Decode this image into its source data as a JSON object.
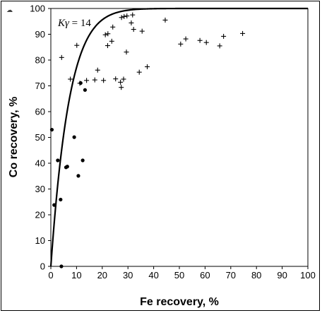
{
  "chart_data": {
    "type": "scatter",
    "xlabel": "Fe recovery, %",
    "ylabel": "Co recovery, %",
    "xlim": [
      0,
      100
    ],
    "ylim": [
      0,
      100
    ],
    "xticks": [
      0,
      10,
      20,
      30,
      40,
      50,
      60,
      70,
      80,
      90,
      100
    ],
    "yticks": [
      0,
      10,
      20,
      30,
      40,
      50,
      60,
      70,
      80,
      90,
      100
    ],
    "annotation": {
      "symbol": "Kγ",
      "equals": " = 14"
    },
    "corner_mark": "☁",
    "series": [
      {
        "marker": "plus",
        "points": [
          [
            4.2,
            81
          ],
          [
            7.6,
            72.6
          ],
          [
            10.1,
            85.7
          ],
          [
            11.3,
            71
          ],
          [
            13.9,
            72.1
          ],
          [
            17.1,
            72.3
          ],
          [
            18.2,
            76.1
          ],
          [
            20.5,
            72.1
          ],
          [
            21.2,
            89.8
          ],
          [
            22.2,
            90.2
          ],
          [
            22.1,
            85.6
          ],
          [
            23.7,
            87.3
          ],
          [
            24.1,
            92.8
          ],
          [
            25.2,
            72.7
          ],
          [
            27.1,
            71.4
          ],
          [
            27.4,
            69.4
          ],
          [
            27.5,
            96.5
          ],
          [
            28.3,
            72.6
          ],
          [
            28.5,
            96.9
          ],
          [
            29.4,
            83.1
          ],
          [
            29.6,
            97.1
          ],
          [
            31.3,
            94.4
          ],
          [
            31.8,
            97.5
          ],
          [
            32.2,
            91.9
          ],
          [
            34.4,
            75.3
          ],
          [
            35.5,
            91.2
          ],
          [
            37.5,
            77.4
          ],
          [
            44.5,
            95.5
          ],
          [
            50.5,
            86.2
          ],
          [
            52.5,
            88.2
          ],
          [
            58,
            87.6
          ],
          [
            60.5,
            86.8
          ],
          [
            65.7,
            85.5
          ],
          [
            67.2,
            89.2
          ],
          [
            74.6,
            90.3
          ]
        ]
      },
      {
        "marker": "dot",
        "points": [
          [
            0.4,
            53
          ],
          [
            1.3,
            23.8
          ],
          [
            2.7,
            41.1
          ],
          [
            3.8,
            25.9
          ],
          [
            4.1,
            0
          ],
          [
            5.9,
            38.4
          ],
          [
            6.4,
            38.7
          ],
          [
            9.1,
            50.1
          ],
          [
            10.7,
            35.1
          ],
          [
            11.6,
            71.1
          ],
          [
            12.4,
            41.1
          ],
          [
            13.3,
            68.4
          ]
        ]
      },
      {
        "name": "Kγ = 14",
        "kind": "curve",
        "K": 14
      }
    ]
  }
}
